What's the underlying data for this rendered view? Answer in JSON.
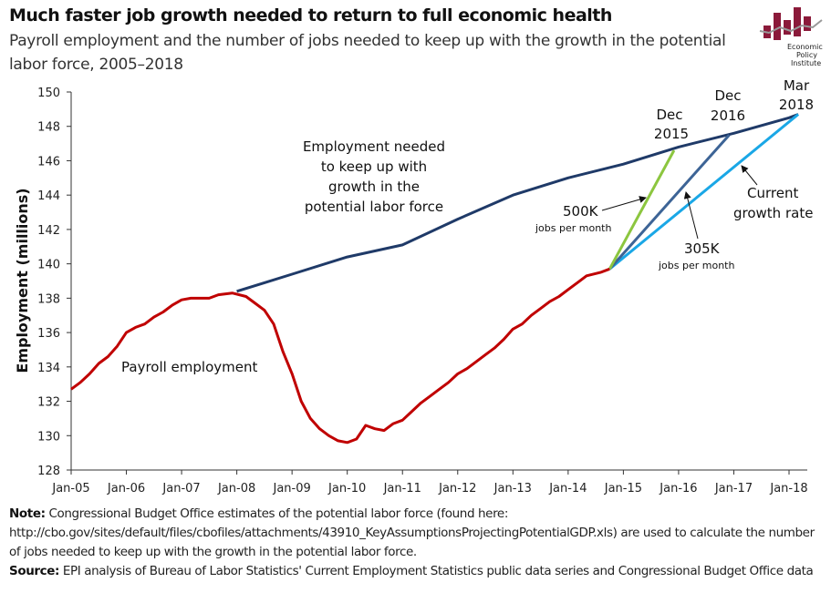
{
  "header": {
    "title": "Much faster job growth needed to return to full economic health",
    "subtitle": "Payroll employment and the number of jobs needed to keep up with the growth in the potential labor force, 2005–2018"
  },
  "logo": {
    "text": "Economic Policy Institute",
    "color": "#8b1a3a"
  },
  "footer": {
    "note_label": "Note:",
    "note_text": " Congressional Budget Office estimates of the potential labor force (found here: http://cbo.gov/sites/default/files/cbofiles/attachments/43910_KeyAssumptionsProjectingPotentialGDP.xls)  are used to calculate the number of jobs needed to keep up with the growth in the potential labor force.",
    "source_label": "Source:",
    "source_text": " EPI analysis of Bureau of Labor Statistics' Current Employment Statistics public data series and Congressional Budget Office data"
  },
  "chart_data": {
    "type": "line",
    "ylabel": "Employment (millions)",
    "xlabel": "",
    "ylim": [
      128,
      150
    ],
    "yticks": [
      "128",
      "130",
      "132",
      "134",
      "136",
      "138",
      "140",
      "142",
      "144",
      "146",
      "148",
      "150"
    ],
    "xticks": [
      {
        "date": "2005-01",
        "label": "Jan-05"
      },
      {
        "date": "2006-01",
        "label": "Jan-06"
      },
      {
        "date": "2007-01",
        "label": "Jan-07"
      },
      {
        "date": "2008-01",
        "label": "Jan-08"
      },
      {
        "date": "2009-01",
        "label": "Jan-09"
      },
      {
        "date": "2010-01",
        "label": "Jan-10"
      },
      {
        "date": "2011-01",
        "label": "Jan-11"
      },
      {
        "date": "2012-01",
        "label": "Jan-12"
      },
      {
        "date": "2013-01",
        "label": "Jan-13"
      },
      {
        "date": "2014-01",
        "label": "Jan-14"
      },
      {
        "date": "2015-01",
        "label": "Jan-15"
      },
      {
        "date": "2016-01",
        "label": "Jan-16"
      },
      {
        "date": "2017-01",
        "label": "Jan-17"
      },
      {
        "date": "2018-01",
        "label": "Jan-18"
      }
    ],
    "grid": false,
    "legend": "none (direct labels)",
    "series": [
      {
        "name": "Payroll employment",
        "color": "#c00000",
        "points": [
          [
            "2005-01",
            132.7
          ],
          [
            "2005-03",
            133.1
          ],
          [
            "2005-05",
            133.6
          ],
          [
            "2005-07",
            134.2
          ],
          [
            "2005-09",
            134.6
          ],
          [
            "2005-11",
            135.2
          ],
          [
            "2006-01",
            136.0
          ],
          [
            "2006-03",
            136.3
          ],
          [
            "2006-05",
            136.5
          ],
          [
            "2006-07",
            136.9
          ],
          [
            "2006-09",
            137.2
          ],
          [
            "2006-11",
            137.6
          ],
          [
            "2007-01",
            137.9
          ],
          [
            "2007-03",
            138.0
          ],
          [
            "2007-05",
            138.0
          ],
          [
            "2007-07",
            138.0
          ],
          [
            "2007-09",
            138.2
          ],
          [
            "2007-12",
            138.3
          ],
          [
            "2008-03",
            138.1
          ],
          [
            "2008-05",
            137.7
          ],
          [
            "2008-07",
            137.3
          ],
          [
            "2008-09",
            136.5
          ],
          [
            "2008-11",
            134.9
          ],
          [
            "2009-01",
            133.6
          ],
          [
            "2009-03",
            132.0
          ],
          [
            "2009-05",
            131.0
          ],
          [
            "2009-07",
            130.4
          ],
          [
            "2009-09",
            130.0
          ],
          [
            "2009-11",
            129.7
          ],
          [
            "2010-01",
            129.6
          ],
          [
            "2010-03",
            129.8
          ],
          [
            "2010-05",
            130.6
          ],
          [
            "2010-07",
            130.4
          ],
          [
            "2010-09",
            130.3
          ],
          [
            "2010-11",
            130.7
          ],
          [
            "2011-01",
            130.9
          ],
          [
            "2011-03",
            131.4
          ],
          [
            "2011-05",
            131.9
          ],
          [
            "2011-07",
            132.3
          ],
          [
            "2011-09",
            132.7
          ],
          [
            "2011-11",
            133.1
          ],
          [
            "2012-01",
            133.6
          ],
          [
            "2012-03",
            133.9
          ],
          [
            "2012-05",
            134.3
          ],
          [
            "2012-07",
            134.7
          ],
          [
            "2012-09",
            135.1
          ],
          [
            "2012-11",
            135.6
          ],
          [
            "2013-01",
            136.2
          ],
          [
            "2013-03",
            136.5
          ],
          [
            "2013-05",
            137.0
          ],
          [
            "2013-07",
            137.4
          ],
          [
            "2013-09",
            137.8
          ],
          [
            "2013-11",
            138.1
          ],
          [
            "2014-01",
            138.5
          ],
          [
            "2014-03",
            138.9
          ],
          [
            "2014-05",
            139.3
          ],
          [
            "2014-08",
            139.5
          ],
          [
            "2014-10",
            139.7
          ]
        ]
      },
      {
        "name": "Employment needed to keep up with growth in the potential labor force",
        "color": "#1f3a68",
        "points": [
          [
            "2008-01",
            138.4
          ],
          [
            "2008-07",
            138.9
          ],
          [
            "2009-01",
            139.4
          ],
          [
            "2010-01",
            140.4
          ],
          [
            "2011-01",
            141.1
          ],
          [
            "2012-01",
            142.6
          ],
          [
            "2013-01",
            144.0
          ],
          [
            "2014-01",
            145.0
          ],
          [
            "2015-01",
            145.8
          ],
          [
            "2016-01",
            146.8
          ],
          [
            "2017-01",
            147.6
          ],
          [
            "2018-01",
            148.5
          ],
          [
            "2018-03",
            148.7
          ]
        ]
      },
      {
        "name": "500K jobs per month",
        "color": "#8cc63f",
        "points": [
          [
            "2014-10",
            139.7
          ],
          [
            "2015-12",
            146.6
          ]
        ]
      },
      {
        "name": "305K jobs per month",
        "color": "#3d6496",
        "points": [
          [
            "2014-10",
            139.7
          ],
          [
            "2016-12",
            147.5
          ]
        ]
      },
      {
        "name": "Current growth rate",
        "color": "#1aa7e6",
        "points": [
          [
            "2014-10",
            139.7
          ],
          [
            "2018-03",
            148.7
          ]
        ]
      }
    ],
    "annotations": {
      "needed_lines": [
        "Employment needed",
        "to keep up with",
        "growth in the",
        "potential labor force"
      ],
      "payroll": "Payroll employment",
      "dec2015": [
        "Dec",
        "2015"
      ],
      "dec2016": [
        "Dec",
        "2016"
      ],
      "mar2018": [
        "Mar",
        "2018"
      ],
      "k500": "500K",
      "k500_sub": "jobs per month",
      "k305": "305K",
      "k305_sub": "jobs per month",
      "current": [
        "Current",
        "growth rate"
      ]
    }
  }
}
